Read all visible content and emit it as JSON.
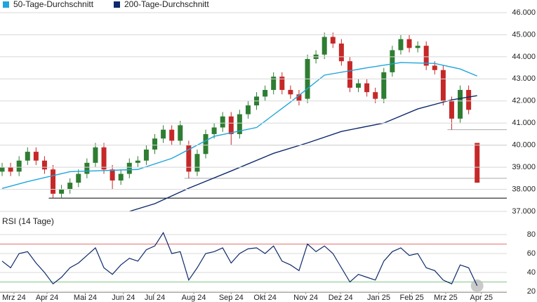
{
  "chart_data": [
    {
      "type": "candlestick",
      "x": [
        0,
        1,
        2,
        3,
        4,
        5,
        6,
        7,
        8,
        9,
        10,
        11,
        12,
        13,
        14,
        15,
        16,
        17,
        18,
        19,
        20,
        21,
        22,
        23,
        24,
        25,
        26,
        27,
        28,
        29,
        30,
        31,
        32,
        33,
        34,
        35,
        36,
        37,
        38,
        39,
        40,
        41,
        42,
        43,
        44,
        45,
        46,
        47,
        48,
        49,
        50,
        51,
        52,
        53,
        54,
        55,
        56
      ],
      "open": [
        38.8,
        39.0,
        38.8,
        39.3,
        39.7,
        39.3,
        38.9,
        37.8,
        38.0,
        38.3,
        38.7,
        39.2,
        39.9,
        38.9,
        38.4,
        38.7,
        39.2,
        39.3,
        39.8,
        40.3,
        40.7,
        40.2,
        40.0,
        38.8,
        39.6,
        40.5,
        40.8,
        41.3,
        40.5,
        41.4,
        41.8,
        42.2,
        42.5,
        43.1,
        42.5,
        42.3,
        42.1,
        43.9,
        44.1,
        44.9,
        44.6,
        43.8,
        42.6,
        42.8,
        42.4,
        42.1,
        43.3,
        44.3,
        44.8,
        44.4,
        44.5,
        43.6,
        43.4,
        42.0,
        41.2,
        42.5,
        40.1
      ],
      "high": [
        39.2,
        39.2,
        39.5,
        39.9,
        39.9,
        39.5,
        39.1,
        38.2,
        38.5,
        38.9,
        39.4,
        40.1,
        40.1,
        39.1,
        38.9,
        39.4,
        39.5,
        40.0,
        40.5,
        40.9,
        40.9,
        41.1,
        40.2,
        39.8,
        40.7,
        41.0,
        41.5,
        41.5,
        41.6,
        42.0,
        42.4,
        42.7,
        43.3,
        43.3,
        42.7,
        42.5,
        44.1,
        44.3,
        45.1,
        45.1,
        44.8,
        44.0,
        43.0,
        43.0,
        42.6,
        43.5,
        44.5,
        45.0,
        45.0,
        44.7,
        44.7,
        43.8,
        43.6,
        42.2,
        42.7,
        42.7,
        40.1
      ],
      "low": [
        38.6,
        38.6,
        38.6,
        39.1,
        39.1,
        38.7,
        37.6,
        37.6,
        37.8,
        38.1,
        38.5,
        39.0,
        38.7,
        38.0,
        38.2,
        38.5,
        39.0,
        39.1,
        39.6,
        40.1,
        40.0,
        40.0,
        38.5,
        38.6,
        39.4,
        40.3,
        40.6,
        40.0,
        40.3,
        41.2,
        41.6,
        42.0,
        42.3,
        42.3,
        42.1,
        41.8,
        41.9,
        43.7,
        43.9,
        44.4,
        43.6,
        42.4,
        42.4,
        42.2,
        41.9,
        41.9,
        43.1,
        44.1,
        44.2,
        44.2,
        43.4,
        43.2,
        41.8,
        40.7,
        41.0,
        41.4,
        38.3
      ],
      "close": [
        39.0,
        38.8,
        39.3,
        39.7,
        39.3,
        38.9,
        37.8,
        38.0,
        38.3,
        38.7,
        39.2,
        39.9,
        38.9,
        38.4,
        38.7,
        39.2,
        39.3,
        39.8,
        40.3,
        40.7,
        40.2,
        40.9,
        38.8,
        39.6,
        40.5,
        40.8,
        41.3,
        40.5,
        41.4,
        41.8,
        42.2,
        42.5,
        43.1,
        42.5,
        42.3,
        42.0,
        43.9,
        44.1,
        44.9,
        44.6,
        43.8,
        42.6,
        42.8,
        42.4,
        42.1,
        43.3,
        44.3,
        44.8,
        44.4,
        44.5,
        43.6,
        43.4,
        42.0,
        41.2,
        42.5,
        41.6,
        38.3
      ],
      "up_color": "#2e7d32",
      "down_color": "#c62828",
      "series": [
        {
          "name": "50-Tage-Durchschnitt",
          "color": "#1fa5dc",
          "x": [
            0,
            3,
            8,
            16,
            20,
            25,
            30,
            34,
            38,
            43,
            47,
            51,
            54,
            56
          ],
          "values": [
            38.04,
            38.35,
            38.8,
            38.9,
            39.4,
            40.4,
            40.8,
            41.95,
            43.17,
            43.5,
            43.74,
            43.7,
            43.45,
            43.13
          ]
        },
        {
          "name": "200-Tage-Durchschnitt",
          "color": "#0d2a6b",
          "x": [
            15,
            18,
            22,
            27,
            32,
            36,
            40,
            45,
            49,
            53,
            56
          ],
          "values": [
            37.0,
            37.35,
            38.05,
            38.83,
            39.63,
            40.1,
            40.62,
            41.0,
            41.64,
            42.05,
            42.24
          ]
        }
      ],
      "levels": [
        {
          "value": 38.0,
          "x": 12,
          "color": "#000000"
        },
        {
          "value": 37.6,
          "x": 5.5,
          "color": "#000000"
        },
        {
          "value": 38.5,
          "x": 21.5,
          "color": "#aaaaaa"
        },
        {
          "value": 40.0,
          "x": 27,
          "color": "#aaaaaa"
        },
        {
          "value": 40.7,
          "x": 52.5,
          "color": "#aaaaaa"
        }
      ],
      "xlim": [
        -0.25,
        59.5
      ],
      "ylim": [
        37,
        46
      ],
      "yticks": [
        {
          "value": 37,
          "label": "37.000"
        },
        {
          "value": 38,
          "label": "38.000"
        },
        {
          "value": 39,
          "label": "39.000"
        },
        {
          "value": 40,
          "label": "40.000"
        },
        {
          "value": 41,
          "label": "41.000"
        },
        {
          "value": 42,
          "label": "42.000"
        },
        {
          "value": 43,
          "label": "43.000"
        },
        {
          "value": 44,
          "label": "44.000"
        },
        {
          "value": 45,
          "label": "45.000"
        },
        {
          "value": 46,
          "label": "46.000"
        }
      ],
      "grid": true
    },
    {
      "type": "line",
      "title": "RSI (14 Tage)",
      "color": "#0d2a6b",
      "x": [
        0,
        1,
        2,
        3,
        4,
        5,
        6,
        7,
        8,
        9,
        10,
        11,
        12,
        13,
        14,
        15,
        16,
        17,
        18,
        19,
        20,
        21,
        22,
        23,
        24,
        25,
        26,
        27,
        28,
        29,
        30,
        31,
        32,
        33,
        34,
        35,
        36,
        37,
        38,
        39,
        40,
        41,
        42,
        43,
        44,
        45,
        46,
        47,
        48,
        49,
        50,
        51,
        52,
        53,
        54,
        55,
        56
      ],
      "values": [
        52,
        45,
        60,
        62,
        50,
        40,
        28,
        35,
        45,
        50,
        58,
        66,
        45,
        38,
        48,
        55,
        52,
        64,
        68,
        82,
        60,
        62,
        32,
        45,
        60,
        62,
        66,
        50,
        60,
        65,
        66,
        60,
        68,
        52,
        48,
        42,
        70,
        62,
        68,
        60,
        45,
        30,
        38,
        35,
        32,
        52,
        62,
        66,
        58,
        60,
        45,
        42,
        32,
        28,
        48,
        45,
        26
      ],
      "levels": [
        {
          "value": 70,
          "color": "#e57373"
        },
        {
          "value": 30,
          "color": "#81c784"
        }
      ],
      "xlim": [
        -0.25,
        59.5
      ],
      "ylim": [
        19,
        87
      ],
      "yticks": [
        20,
        40,
        60,
        80
      ],
      "xticks": [
        {
          "value": 1.4,
          "label": "Mrz 24"
        },
        {
          "value": 5.3,
          "label": "Apr 24"
        },
        {
          "value": 9.8,
          "label": "Mai 24"
        },
        {
          "value": 14.3,
          "label": "Jun 24"
        },
        {
          "value": 18,
          "label": "Jul 24"
        },
        {
          "value": 22.6,
          "label": "Aug 24"
        },
        {
          "value": 27,
          "label": "Sep 24"
        },
        {
          "value": 31,
          "label": "Okt 24"
        },
        {
          "value": 35.8,
          "label": "Nov 24"
        },
        {
          "value": 39.9,
          "label": "Dez 24"
        },
        {
          "value": 44.4,
          "label": "Jan 25"
        },
        {
          "value": 48.3,
          "label": "Feb 25"
        },
        {
          "value": 52.3,
          "label": "Mrz 25"
        },
        {
          "value": 56.5,
          "label": "Apr 25"
        }
      ]
    }
  ]
}
